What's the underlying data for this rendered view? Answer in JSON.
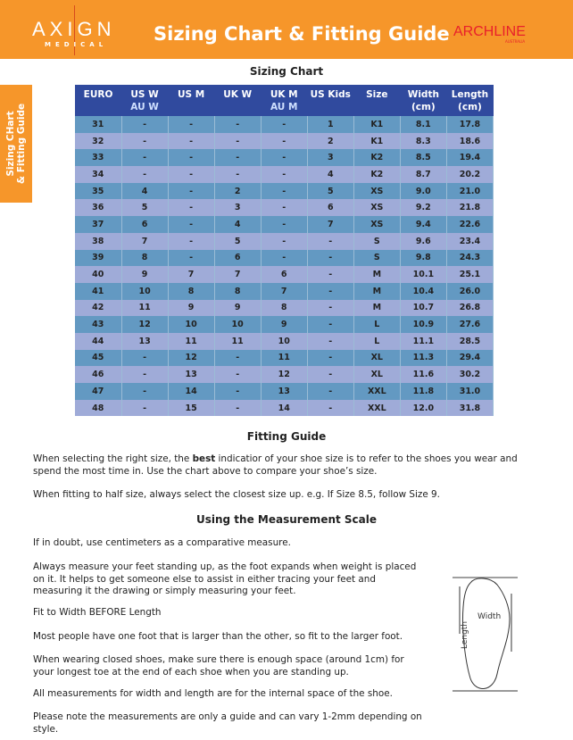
{
  "header": {
    "brand_left": "AXIGN",
    "brand_left_sub": "MEDICAL",
    "title": "Sizing Chart & Fitting Guide",
    "brand_right": "ARCHLINE",
    "brand_right_sub": "AUSTRALIA",
    "accent": "#f6962a"
  },
  "side_tab": {
    "line1": "Sizing CHart",
    "line2": "& Fitting Guide"
  },
  "sizing_chart": {
    "heading": "Sizing Chart",
    "columns": [
      [
        "EURO",
        ""
      ],
      [
        "US W",
        "AU W"
      ],
      [
        "US M",
        ""
      ],
      [
        "UK W",
        ""
      ],
      [
        "UK M",
        "AU M"
      ],
      [
        "US Kids",
        ""
      ],
      [
        "Size",
        ""
      ],
      [
        "Width",
        "(cm)"
      ],
      [
        "Length",
        "(cm)"
      ]
    ],
    "rows": [
      [
        "31",
        "-",
        "-",
        "-",
        "-",
        "1",
        "K1",
        "8.1",
        "17.8"
      ],
      [
        "32",
        "-",
        "-",
        "-",
        "-",
        "2",
        "K1",
        "8.3",
        "18.6"
      ],
      [
        "33",
        "-",
        "-",
        "-",
        "-",
        "3",
        "K2",
        "8.5",
        "19.4"
      ],
      [
        "34",
        "-",
        "-",
        "-",
        "-",
        "4",
        "K2",
        "8.7",
        "20.2"
      ],
      [
        "35",
        "4",
        "-",
        "2",
        "-",
        "5",
        "XS",
        "9.0",
        "21.0"
      ],
      [
        "36",
        "5",
        "-",
        "3",
        "-",
        "6",
        "XS",
        "9.2",
        "21.8"
      ],
      [
        "37",
        "6",
        "-",
        "4",
        "-",
        "7",
        "XS",
        "9.4",
        "22.6"
      ],
      [
        "38",
        "7",
        "-",
        "5",
        "-",
        "-",
        "S",
        "9.6",
        "23.4"
      ],
      [
        "39",
        "8",
        "-",
        "6",
        "-",
        "-",
        "S",
        "9.8",
        "24.3"
      ],
      [
        "40",
        "9",
        "7",
        "7",
        "6",
        "-",
        "M",
        "10.1",
        "25.1"
      ],
      [
        "41",
        "10",
        "8",
        "8",
        "7",
        "-",
        "M",
        "10.4",
        "26.0"
      ],
      [
        "42",
        "11",
        "9",
        "9",
        "8",
        "-",
        "M",
        "10.7",
        "26.8"
      ],
      [
        "43",
        "12",
        "10",
        "10",
        "9",
        "-",
        "L",
        "10.9",
        "27.6"
      ],
      [
        "44",
        "13",
        "11",
        "11",
        "10",
        "-",
        "L",
        "11.1",
        "28.5"
      ],
      [
        "45",
        "-",
        "12",
        "-",
        "11",
        "-",
        "XL",
        "11.3",
        "29.4"
      ],
      [
        "46",
        "-",
        "13",
        "-",
        "12",
        "-",
        "XL",
        "11.6",
        "30.2"
      ],
      [
        "47",
        "-",
        "14",
        "-",
        "13",
        "-",
        "XXL",
        "11.8",
        "31.0"
      ],
      [
        "48",
        "-",
        "15",
        "-",
        "14",
        "-",
        "XXL",
        "12.0",
        "31.8"
      ]
    ]
  },
  "fitting": {
    "heading": "Fitting Guide",
    "p1_a": "When selecting the right size, the ",
    "p1_b": "best",
    "p1_c": " indicatior of your shoe size is to refer to the shoes you wear and spend the most time in. Use the chart above to compare your shoe’s size.",
    "p2": "When fitting to half size, always select the closest size up. e.g. If Size 8.5, follow Size 9."
  },
  "measure": {
    "heading": "Using the Measurement Scale",
    "paragraphs": [
      "If in doubt, use centimeters as a comparative measure.",
      "Always measure your feet standing up, as the foot expands when weight is placed on it. It helps to get someone else to assist in either tracing your feet and measuring it the drawing or simply measuring your feet.",
      "Fit to Width BEFORE Length",
      "Most people have one foot that is larger than the other, so fit to the larger foot.",
      "When wearing closed shoes, make sure there is enough space (around 1cm) for your longest toe at the end of each shoe when you are standing up.",
      "All measurements for width and length are for the internal space of the shoe.",
      "Please note the measurements are only a guide and can vary 1-2mm depending on style."
    ],
    "diagram_width": "Width",
    "diagram_length": "Length"
  }
}
